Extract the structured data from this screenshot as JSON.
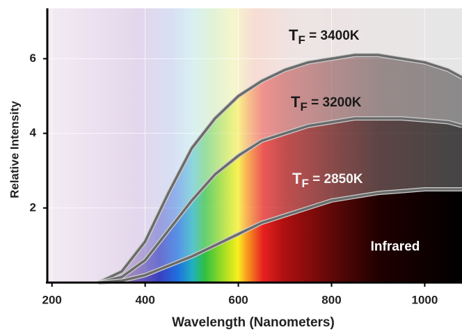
{
  "chart_data": {
    "type": "line",
    "xlabel": "Wavelength (Nanometers)",
    "ylabel": "Relative Intensity",
    "x": [
      300,
      350,
      400,
      450,
      500,
      550,
      600,
      650,
      700,
      750,
      800,
      850,
      900,
      950,
      1000,
      1050,
      1080
    ],
    "series": [
      {
        "name": "TF = 3400K",
        "color": "#6b6b6b",
        "values": [
          0,
          0.3,
          1.1,
          2.4,
          3.6,
          4.4,
          5.0,
          5.4,
          5.7,
          5.9,
          6.0,
          6.1,
          6.1,
          6.0,
          5.9,
          5.7,
          5.5
        ]
      },
      {
        "name": "TF = 3200K",
        "color": "#6b6b6b",
        "values": [
          0,
          0.15,
          0.6,
          1.4,
          2.2,
          2.9,
          3.4,
          3.8,
          4.0,
          4.2,
          4.3,
          4.4,
          4.4,
          4.4,
          4.35,
          4.3,
          4.2
        ]
      },
      {
        "name": "TF = 2850K",
        "color": "#6b6b6b",
        "values": [
          0,
          0.05,
          0.2,
          0.45,
          0.7,
          1.0,
          1.3,
          1.6,
          1.8,
          2.0,
          2.2,
          2.3,
          2.4,
          2.45,
          2.5,
          2.5,
          2.5
        ]
      }
    ],
    "annotations": [
      "Infrared"
    ],
    "xlim": [
      190,
      1080
    ],
    "ylim": [
      0,
      7.35
    ],
    "xticks": [
      200,
      400,
      600,
      800,
      1000
    ],
    "yticks": [
      2,
      4,
      6
    ],
    "grid": true
  }
}
